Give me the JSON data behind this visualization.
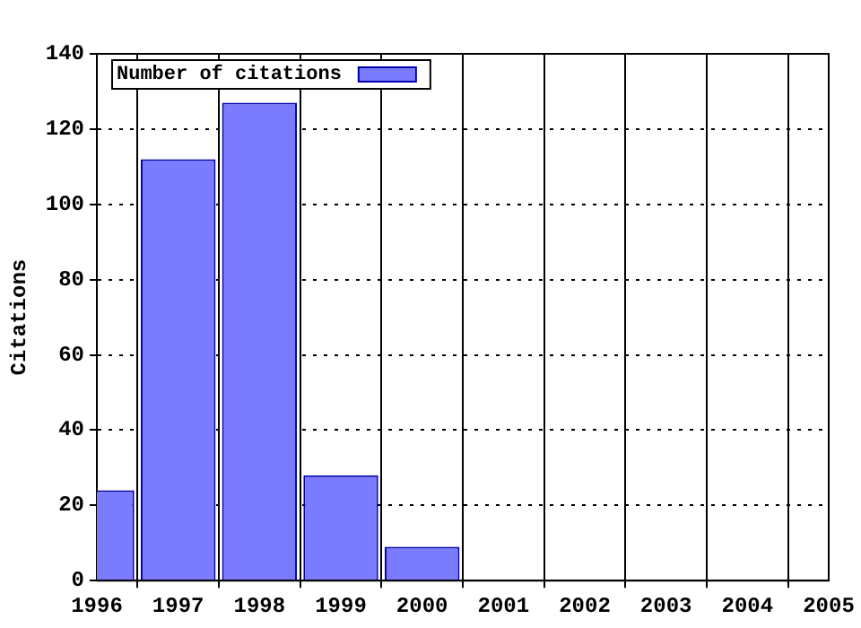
{
  "chart_data": {
    "type": "bar",
    "ylabel": "Citations",
    "x": [
      1996,
      1997,
      1998,
      1999,
      2000
    ],
    "series": [
      {
        "name": "Number of citations",
        "color": "#7b7bff",
        "values": [
          24,
          112,
          127,
          28,
          9
        ]
      }
    ],
    "xlim": [
      1996,
      2005
    ],
    "xticks": [
      1996,
      1997,
      1998,
      1999,
      2000,
      2001,
      2002,
      2003,
      2004,
      2005
    ],
    "ylim": [
      0,
      140
    ],
    "yticks": [
      0,
      20,
      40,
      60,
      80,
      100,
      120,
      140
    ],
    "grid": true,
    "legend": "top left"
  }
}
